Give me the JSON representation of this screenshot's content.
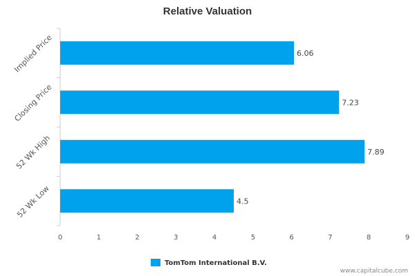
{
  "chart_data": {
    "type": "bar",
    "orientation": "horizontal",
    "title": "Relative Valuation",
    "categories": [
      "Implied Price",
      "Closing Price",
      "52 Wk High",
      "52 Wk Low"
    ],
    "series": [
      {
        "name": "TomTom International B.V.",
        "values": [
          6.06,
          7.23,
          7.89,
          4.5
        ],
        "color": "#00a2ee"
      }
    ],
    "data_labels": [
      "6.06",
      "7.23",
      "7.89",
      "4.5"
    ],
    "xlim": [
      0,
      9
    ],
    "xticks": [
      "0",
      "1",
      "2",
      "3",
      "4",
      "5",
      "6",
      "7",
      "8",
      "9"
    ],
    "grid": false,
    "legend_position": "bottom-center"
  },
  "watermark": "www.capitalcube.com"
}
